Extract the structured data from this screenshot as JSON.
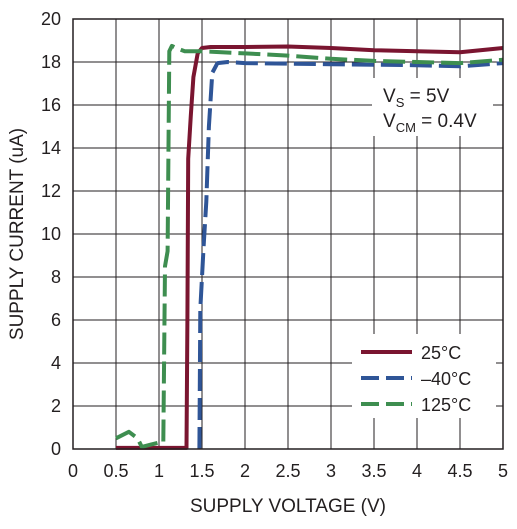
{
  "chart_data": {
    "type": "line",
    "title": "",
    "xlabel": "SUPPLY VOLTAGE (V)",
    "ylabel": "SUPPLY CURRENT (uA)",
    "xlim": [
      0,
      5
    ],
    "ylim": [
      0,
      20
    ],
    "x_ticks": [
      "0",
      "0.5",
      "1",
      "1.5",
      "2",
      "2.5",
      "3",
      "3.5",
      "4",
      "4.5",
      "5"
    ],
    "y_ticks": [
      "0",
      "2",
      "4",
      "6",
      "8",
      "10",
      "12",
      "14",
      "16",
      "18",
      "20"
    ],
    "grid": true,
    "annotations": {
      "vs": {
        "main": "V",
        "sub": "S",
        "rest": " = 5V"
      },
      "vcm": {
        "main": "V",
        "sub": "CM",
        "rest": " = 0.4V"
      }
    },
    "legend_position": "bottom-right",
    "series": [
      {
        "name": "25°C",
        "color": "#7a1530",
        "dash": "solid",
        "points": [
          [
            0.5,
            0.05
          ],
          [
            1.0,
            0.05
          ],
          [
            1.32,
            0.05
          ],
          [
            1.33,
            6.0
          ],
          [
            1.34,
            13.5
          ],
          [
            1.37,
            15.5
          ],
          [
            1.4,
            17.3
          ],
          [
            1.45,
            18.4
          ],
          [
            1.5,
            18.65
          ],
          [
            1.6,
            18.7
          ],
          [
            2.0,
            18.7
          ],
          [
            2.5,
            18.72
          ],
          [
            3.0,
            18.65
          ],
          [
            3.5,
            18.55
          ],
          [
            4.0,
            18.5
          ],
          [
            4.5,
            18.45
          ],
          [
            5.0,
            18.65
          ]
        ]
      },
      {
        "name": "–40°C",
        "color": "#2f5597",
        "dash": "dash",
        "points": [
          [
            1.47,
            0.0
          ],
          [
            1.48,
            6.5
          ],
          [
            1.52,
            9.5
          ],
          [
            1.55,
            11.5
          ],
          [
            1.58,
            15.0
          ],
          [
            1.62,
            17.5
          ],
          [
            1.68,
            17.95
          ],
          [
            1.8,
            18.0
          ],
          [
            2.0,
            17.95
          ],
          [
            3.0,
            17.9
          ],
          [
            4.0,
            17.85
          ],
          [
            4.5,
            17.8
          ],
          [
            5.0,
            17.95
          ]
        ]
      },
      {
        "name": "125°C",
        "color": "#3e8e50",
        "dash": "dash",
        "points": [
          [
            0.5,
            0.5
          ],
          [
            0.65,
            0.8
          ],
          [
            0.75,
            0.5
          ],
          [
            0.8,
            0.1
          ],
          [
            0.9,
            0.2
          ],
          [
            1.0,
            0.3
          ],
          [
            1.05,
            0.3
          ],
          [
            1.07,
            8.5
          ],
          [
            1.1,
            9.2
          ],
          [
            1.12,
            18.5
          ],
          [
            1.15,
            18.75
          ],
          [
            1.2,
            18.65
          ],
          [
            1.3,
            18.5
          ],
          [
            1.5,
            18.5
          ],
          [
            2.0,
            18.4
          ],
          [
            2.5,
            18.3
          ],
          [
            3.0,
            18.15
          ],
          [
            3.5,
            18.05
          ],
          [
            4.0,
            18.0
          ],
          [
            4.5,
            17.95
          ],
          [
            5.0,
            18.1
          ]
        ]
      }
    ]
  }
}
